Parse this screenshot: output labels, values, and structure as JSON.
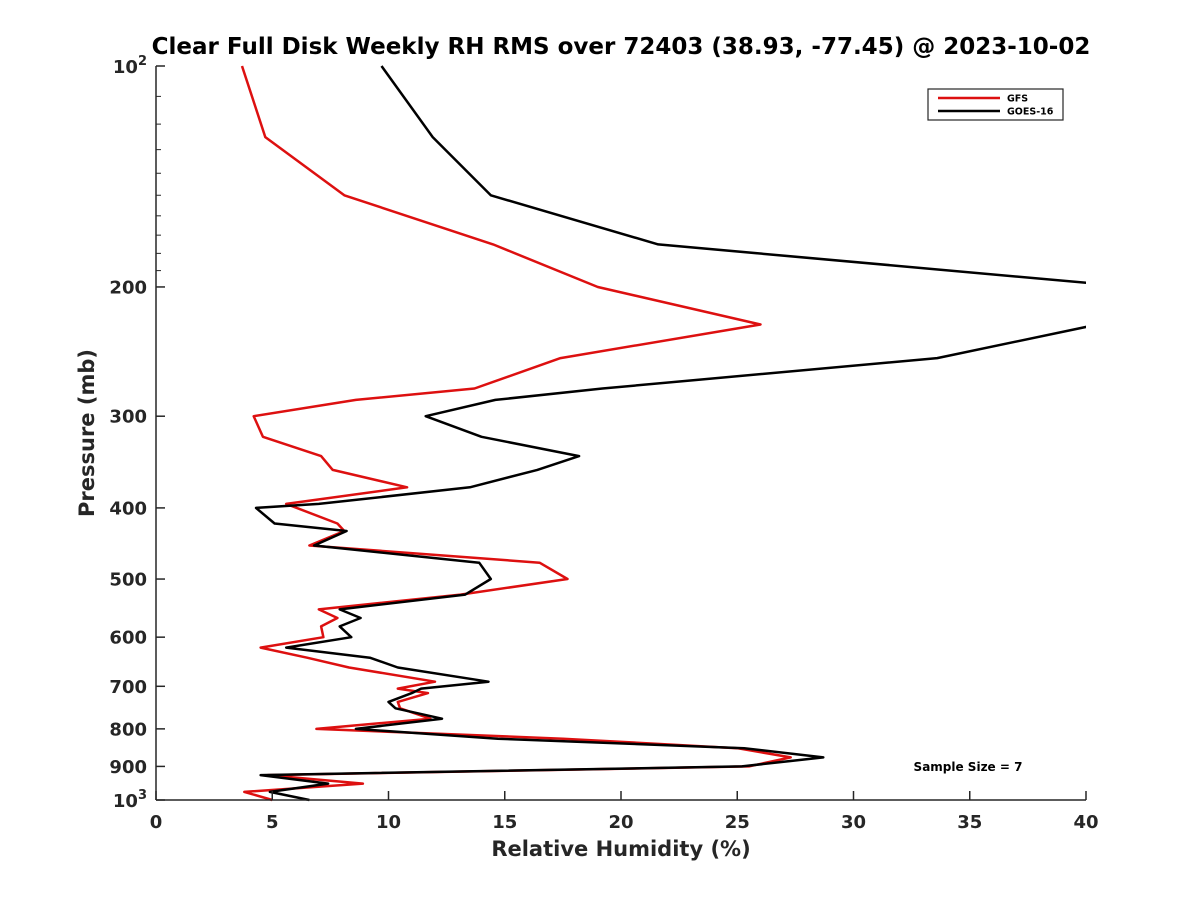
{
  "chart_data": {
    "type": "line",
    "title": "Clear Full Disk Weekly RH RMS over 72403 (38.93, -77.45) @ 2023-10-02",
    "xlabel": "Relative Humidity (%)",
    "ylabel": "Pressure (mb)",
    "xlim": [
      0,
      40
    ],
    "ylim": [
      100,
      1000
    ],
    "y_scale": "log",
    "y_reversed": true,
    "x_ticks": [
      "0",
      "5",
      "10",
      "15",
      "20",
      "25",
      "30",
      "35",
      "40"
    ],
    "y_ticks": [
      {
        "value": 100,
        "base": "10",
        "exp": "2"
      },
      {
        "value": 200,
        "label": "200"
      },
      {
        "value": 300,
        "label": "300"
      },
      {
        "value": 400,
        "label": "400"
      },
      {
        "value": 500,
        "label": "500"
      },
      {
        "value": 600,
        "label": "600"
      },
      {
        "value": 700,
        "label": "700"
      },
      {
        "value": 800,
        "label": "800"
      },
      {
        "value": 900,
        "label": "900"
      },
      {
        "value": 1000,
        "base": "10",
        "exp": "3"
      }
    ],
    "legend_position": "top-right",
    "annotation": "Sample Size = 7",
    "series": [
      {
        "name": "GFS",
        "color": "#dd1010",
        "points": [
          [
            3.7,
            100
          ],
          [
            4.7,
            125
          ],
          [
            8.1,
            150
          ],
          [
            14.5,
            175
          ],
          [
            19.0,
            200
          ],
          [
            26.0,
            225
          ],
          [
            17.4,
            250
          ],
          [
            13.7,
            275
          ],
          [
            8.6,
            285
          ],
          [
            4.2,
            300
          ],
          [
            4.6,
            320
          ],
          [
            7.1,
            340
          ],
          [
            7.6,
            355
          ],
          [
            10.8,
            375
          ],
          [
            5.6,
            395
          ],
          [
            7.8,
            420
          ],
          [
            8.1,
            430
          ],
          [
            6.6,
            450
          ],
          [
            16.5,
            475
          ],
          [
            17.7,
            500
          ],
          [
            13.1,
            525
          ],
          [
            7.0,
            550
          ],
          [
            7.8,
            565
          ],
          [
            7.1,
            580
          ],
          [
            7.2,
            600
          ],
          [
            4.5,
            620
          ],
          [
            6.5,
            640
          ],
          [
            8.3,
            660
          ],
          [
            12.0,
            690
          ],
          [
            10.4,
            705
          ],
          [
            11.7,
            715
          ],
          [
            10.4,
            735
          ],
          [
            10.5,
            750
          ],
          [
            11.8,
            775
          ],
          [
            6.9,
            800
          ],
          [
            17.5,
            825
          ],
          [
            25.0,
            850
          ],
          [
            27.3,
            875
          ],
          [
            25.5,
            900
          ],
          [
            4.8,
            925
          ],
          [
            8.9,
            950
          ],
          [
            3.8,
            975
          ],
          [
            5.0,
            1000
          ]
        ]
      },
      {
        "name": "GOES-16",
        "color": "#000000",
        "points": [
          [
            9.7,
            100
          ],
          [
            11.9,
            125
          ],
          [
            14.4,
            150
          ],
          [
            21.6,
            175
          ],
          [
            40.5,
            198
          ],
          [
            40.5,
            225
          ],
          [
            33.6,
            250
          ],
          [
            19.2,
            275
          ],
          [
            14.6,
            285
          ],
          [
            11.6,
            300
          ],
          [
            14.0,
            320
          ],
          [
            18.2,
            340
          ],
          [
            16.4,
            355
          ],
          [
            13.5,
            375
          ],
          [
            7.0,
            395
          ],
          [
            4.3,
            400
          ],
          [
            5.1,
            420
          ],
          [
            8.2,
            430
          ],
          [
            6.8,
            450
          ],
          [
            13.9,
            475
          ],
          [
            14.4,
            500
          ],
          [
            13.3,
            525
          ],
          [
            7.9,
            550
          ],
          [
            8.8,
            565
          ],
          [
            7.9,
            580
          ],
          [
            8.4,
            600
          ],
          [
            5.6,
            620
          ],
          [
            9.2,
            640
          ],
          [
            10.4,
            660
          ],
          [
            14.3,
            690
          ],
          [
            11.4,
            705
          ],
          [
            11.0,
            715
          ],
          [
            10.0,
            735
          ],
          [
            10.3,
            750
          ],
          [
            12.3,
            775
          ],
          [
            8.6,
            800
          ],
          [
            14.7,
            825
          ],
          [
            25.3,
            850
          ],
          [
            28.7,
            875
          ],
          [
            25.2,
            900
          ],
          [
            4.5,
            925
          ],
          [
            7.4,
            950
          ],
          [
            4.9,
            975
          ],
          [
            6.6,
            1000
          ]
        ]
      }
    ]
  }
}
